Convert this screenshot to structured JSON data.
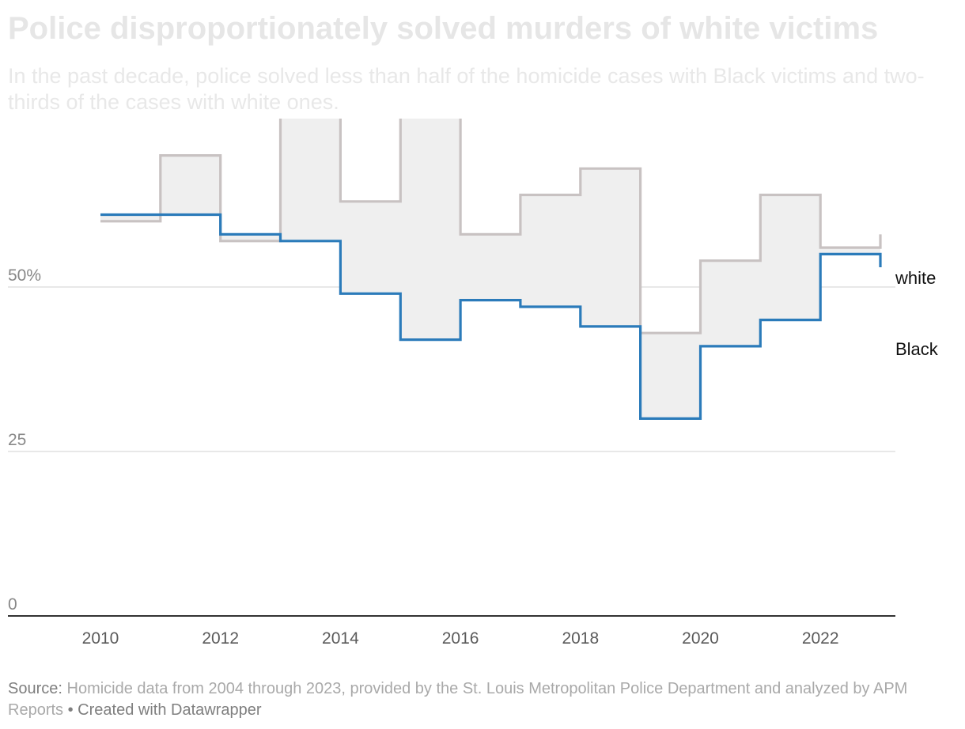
{
  "title": "Police disproportionately solved murders of white victims",
  "subtitle": "In the past decade, police solved less than half of the homicide cases with Black victims and two-thirds of the cases with white ones.",
  "colors": {
    "white_line": "#c8c2c2",
    "black_line": "#2b7bba",
    "fill": "#efefef",
    "grid": "#e0e0e0",
    "axis": "#333333",
    "tick_text": "#888888",
    "series_label": "#111111"
  },
  "chart_data": {
    "type": "line",
    "step": true,
    "x": [
      2010,
      2011,
      2012,
      2013,
      2014,
      2015,
      2016,
      2017,
      2018,
      2019,
      2020,
      2021,
      2022
    ],
    "x_end": 2023,
    "xlim": [
      2008.5,
      2023.6
    ],
    "ylim": [
      0,
      75
    ],
    "x_ticks": [
      2010,
      2012,
      2014,
      2016,
      2018,
      2020,
      2022
    ],
    "x_tick_labels": [
      "2010",
      "2012",
      "2014",
      "2016",
      "2018",
      "2020",
      "2022"
    ],
    "y_ticks": [
      0,
      25,
      50
    ],
    "y_tick_labels": [
      "0",
      "25",
      "50%"
    ],
    "grid": true,
    "area_between_series": true,
    "series": [
      {
        "name": "white",
        "values": [
          60,
          70,
          57,
          77,
          63,
          78,
          58,
          64,
          68,
          43,
          54,
          64,
          56
        ],
        "end_value": 58
      },
      {
        "name": "Black",
        "values": [
          61,
          61,
          58,
          57,
          49,
          42,
          48,
          47,
          44,
          30,
          41,
          45,
          55
        ],
        "end_value": 53
      }
    ]
  },
  "footer": {
    "source_label": "Source:",
    "source_text": "Homicide data from 2004 through 2023, provided by the St. Louis Metropolitan Police Department and analyzed by APM Reports",
    "separator": "•",
    "credit": "Created with Datawrapper"
  }
}
